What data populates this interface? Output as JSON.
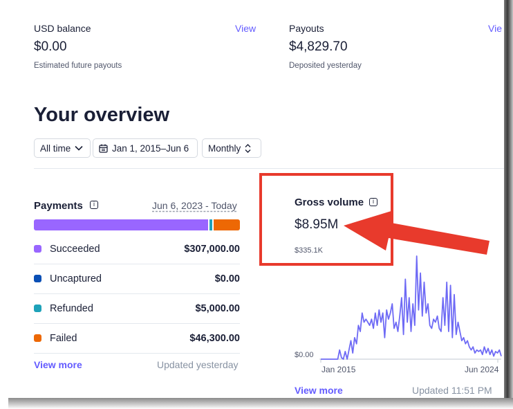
{
  "balance": {
    "title": "USD balance",
    "view_label": "View",
    "amount": "$0.00",
    "subtitle": "Estimated future payouts"
  },
  "payouts": {
    "title": "Payouts",
    "view_label": "Vie",
    "amount": "$4,829.70",
    "subtitle": "Deposited yesterday"
  },
  "overview": {
    "heading": "Your overview",
    "filters": {
      "range": "All time",
      "dates": "Jan 1, 2015–Jun 6",
      "interval": "Monthly"
    }
  },
  "payments": {
    "title": "Payments",
    "date_range": "Jun 6, 2023 - Today",
    "bar_fractions": {
      "succeeded": 0.858,
      "refunded": 0.014,
      "failed": 0.128
    },
    "rows": [
      {
        "label": "Succeeded",
        "amount": "$307,000.00",
        "color": "#9966ff"
      },
      {
        "label": "Uncaptured",
        "amount": "$0.00",
        "color": "#0a4fb5"
      },
      {
        "label": "Refunded",
        "amount": "$5,000.00",
        "color": "#1ea2b9"
      },
      {
        "label": "Failed",
        "amount": "$46,300.00",
        "color": "#ed6804"
      }
    ],
    "view_more": "View more",
    "updated": "Updated yesterday"
  },
  "gross": {
    "title": "Gross volume",
    "amount": "$8.95M",
    "view_more": "View more",
    "updated": "Updated 11:51 PM"
  },
  "chart_data": {
    "type": "line",
    "title": "",
    "ylabel_top": "$335.1K",
    "ylabel_bottom": "$0.00",
    "x_tick_labels": [
      "Jan 2015",
      "Jun 2024"
    ],
    "ylim": [
      0,
      335100
    ],
    "series": [
      {
        "color": "#6e6af5",
        "values": [
          0,
          0,
          0,
          0,
          0,
          0,
          0,
          0,
          0,
          0,
          30000,
          5000,
          0,
          25000,
          0,
          30000,
          60000,
          20000,
          70000,
          50000,
          110000,
          90000,
          150000,
          120000,
          130000,
          120000,
          110000,
          130000,
          100000,
          150000,
          110000,
          160000,
          120000,
          150000,
          70000,
          160000,
          130000,
          150000,
          180000,
          100000,
          120000,
          90000,
          140000,
          200000,
          80000,
          260000,
          120000,
          200000,
          90000,
          180000,
          110000,
          335100,
          160000,
          280000,
          140000,
          250000,
          150000,
          180000,
          110000,
          100000,
          130000,
          120000,
          140000,
          100000,
          90000,
          200000,
          110000,
          250000,
          90000,
          240000,
          70000,
          210000,
          80000,
          120000,
          90000,
          60000,
          70000,
          50000,
          60000,
          40000,
          30000,
          40000,
          20000,
          30000,
          25000,
          30000,
          15000,
          40000,
          20000,
          35000,
          15000,
          30000,
          10000,
          25000,
          20000,
          30000,
          10000
        ]
      }
    ]
  },
  "annotation": {
    "box_color": "#e83a2c",
    "arrow_color": "#e83a2c"
  }
}
